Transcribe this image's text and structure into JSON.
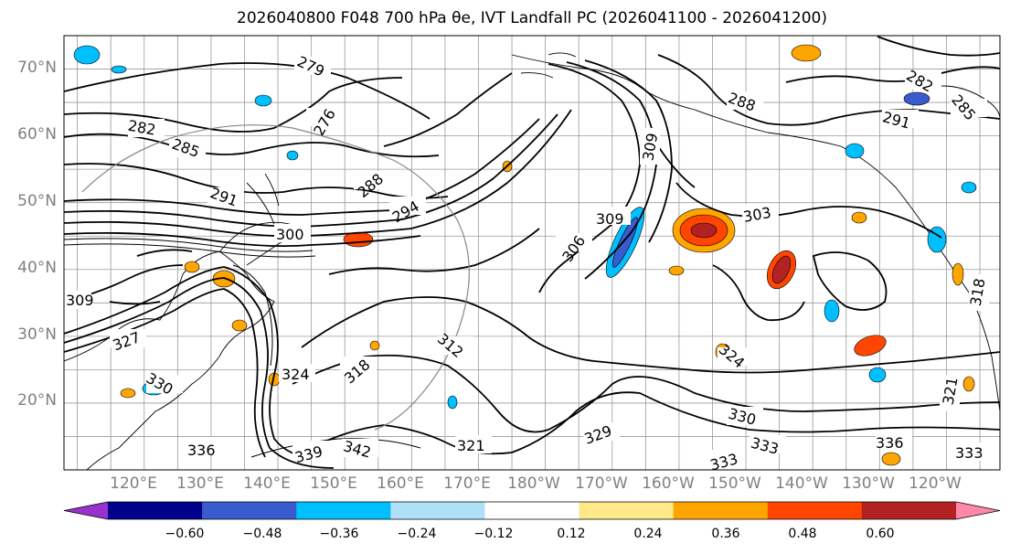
{
  "title": "2026040800 F048 700 hPa θe, IVT Landfall PC (2026041100 - 2026041200)",
  "map": {
    "type": "filled-contour-map",
    "projection": "plate-carree",
    "lon_range": [
      113,
      253
    ],
    "lat_range": [
      10,
      75
    ],
    "lat_ticks": [
      "20°N",
      "30°N",
      "40°N",
      "50°N",
      "60°N",
      "70°N"
    ],
    "lon_ticks": [
      "120°E",
      "130°E",
      "140°E",
      "150°E",
      "160°E",
      "170°E",
      "180°W",
      "170°W",
      "160°W",
      "150°W",
      "140°W",
      "130°W",
      "120°W"
    ],
    "gridlines": true,
    "contour_variable": "700 hPa theta-e (K)",
    "contour_labels": [
      "279",
      "276",
      "282",
      "285",
      "291",
      "288",
      "294",
      "300",
      "309",
      "306",
      "303",
      "309",
      "312",
      "318",
      "324",
      "330",
      "324",
      "321",
      "327",
      "336",
      "339",
      "342",
      "333",
      "329",
      "288",
      "291",
      "282",
      "285",
      "318",
      "321",
      "309",
      "330",
      "333",
      "333",
      "336"
    ]
  },
  "colorbar": {
    "orientation": "horizontal",
    "extend": "both",
    "ticks": [
      "−0.60",
      "−0.48",
      "−0.36",
      "−0.24",
      "−0.12",
      "0.12",
      "0.24",
      "0.36",
      "0.48",
      "0.60"
    ],
    "bins": [
      {
        "color": "#9932cc"
      },
      {
        "color": "#00008b"
      },
      {
        "color": "#3a5bcd"
      },
      {
        "color": "#00bfff"
      },
      {
        "color": "#b0e0f8"
      },
      {
        "color": "#ffffff"
      },
      {
        "color": "#ffe888"
      },
      {
        "color": "#ffa500"
      },
      {
        "color": "#ff4500"
      },
      {
        "color": "#b22222"
      },
      {
        "color": "#ff88aa"
      }
    ]
  }
}
